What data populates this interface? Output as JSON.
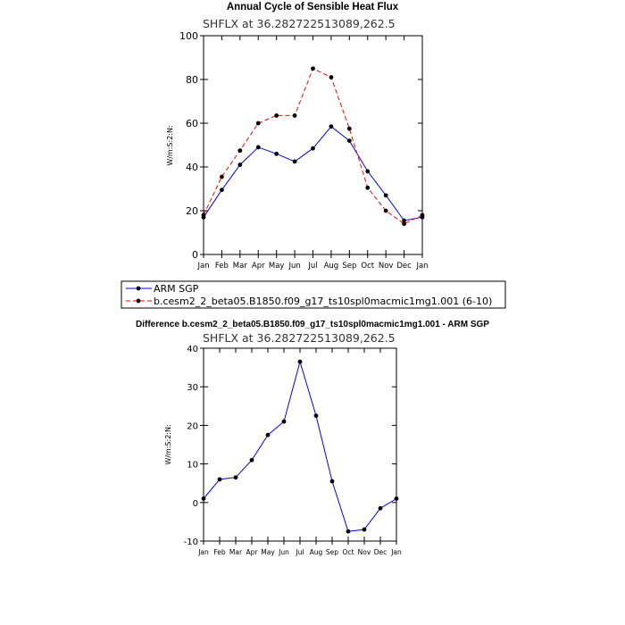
{
  "chart_data": [
    {
      "type": "line",
      "title": "Annual Cycle of Sensible Heat Flux",
      "subtitle": "SHFLX at 36.282722513089,262.5",
      "ylabel": "W/m:S:2:N:",
      "xlabel": "",
      "ylim": [
        0,
        100
      ],
      "yticks": [
        0,
        20,
        40,
        60,
        80,
        100
      ],
      "categories": [
        "Jan",
        "Feb",
        "Mar",
        "Apr",
        "May",
        "Jun",
        "Jul",
        "Aug",
        "Sep",
        "Oct",
        "Nov",
        "Dec",
        "Jan"
      ],
      "grid": false,
      "legend_position": "bottom",
      "series": [
        {
          "name": "ARM SGP",
          "color": "#0000ff",
          "dash": "solid",
          "marker": "dot",
          "values": [
            17,
            29.5,
            41,
            49,
            46,
            42.5,
            48.5,
            58.5,
            52,
            38,
            27,
            15.5,
            17
          ]
        },
        {
          "name": "b.cesm2_2_beta05.B1850.f09_g17_ts10spl0macmic1mg1.001 (6-10)",
          "color": "#ff0000",
          "dash": "dashed",
          "marker": "dot",
          "values": [
            18,
            35.5,
            47.5,
            60,
            63.5,
            63.5,
            85,
            81,
            57.5,
            30.5,
            20,
            14,
            18
          ]
        }
      ]
    },
    {
      "type": "line",
      "title": "Difference b.cesm2_2_beta05.B1850.f09_g17_ts10spl0macmic1mg1.001 - ARM SGP",
      "subtitle": "SHFLX at 36.282722513089,262.5",
      "ylabel": "W/m:S:2:N:",
      "xlabel": "",
      "ylim": [
        -10,
        40
      ],
      "yticks": [
        -10,
        0,
        10,
        20,
        30,
        40
      ],
      "categories": [
        "Jan",
        "Feb",
        "Mar",
        "Apr",
        "May",
        "Jun",
        "Jul",
        "Aug",
        "Sep",
        "Oct",
        "Nov",
        "Dec",
        "Jan"
      ],
      "grid": false,
      "series": [
        {
          "name": "",
          "color": "#0000ff",
          "dash": "solid",
          "marker": "dot",
          "values": [
            1,
            6,
            6.5,
            11,
            17.5,
            21,
            36.5,
            22.5,
            5.5,
            -7.5,
            -7,
            -1.5,
            1
          ]
        }
      ]
    }
  ]
}
